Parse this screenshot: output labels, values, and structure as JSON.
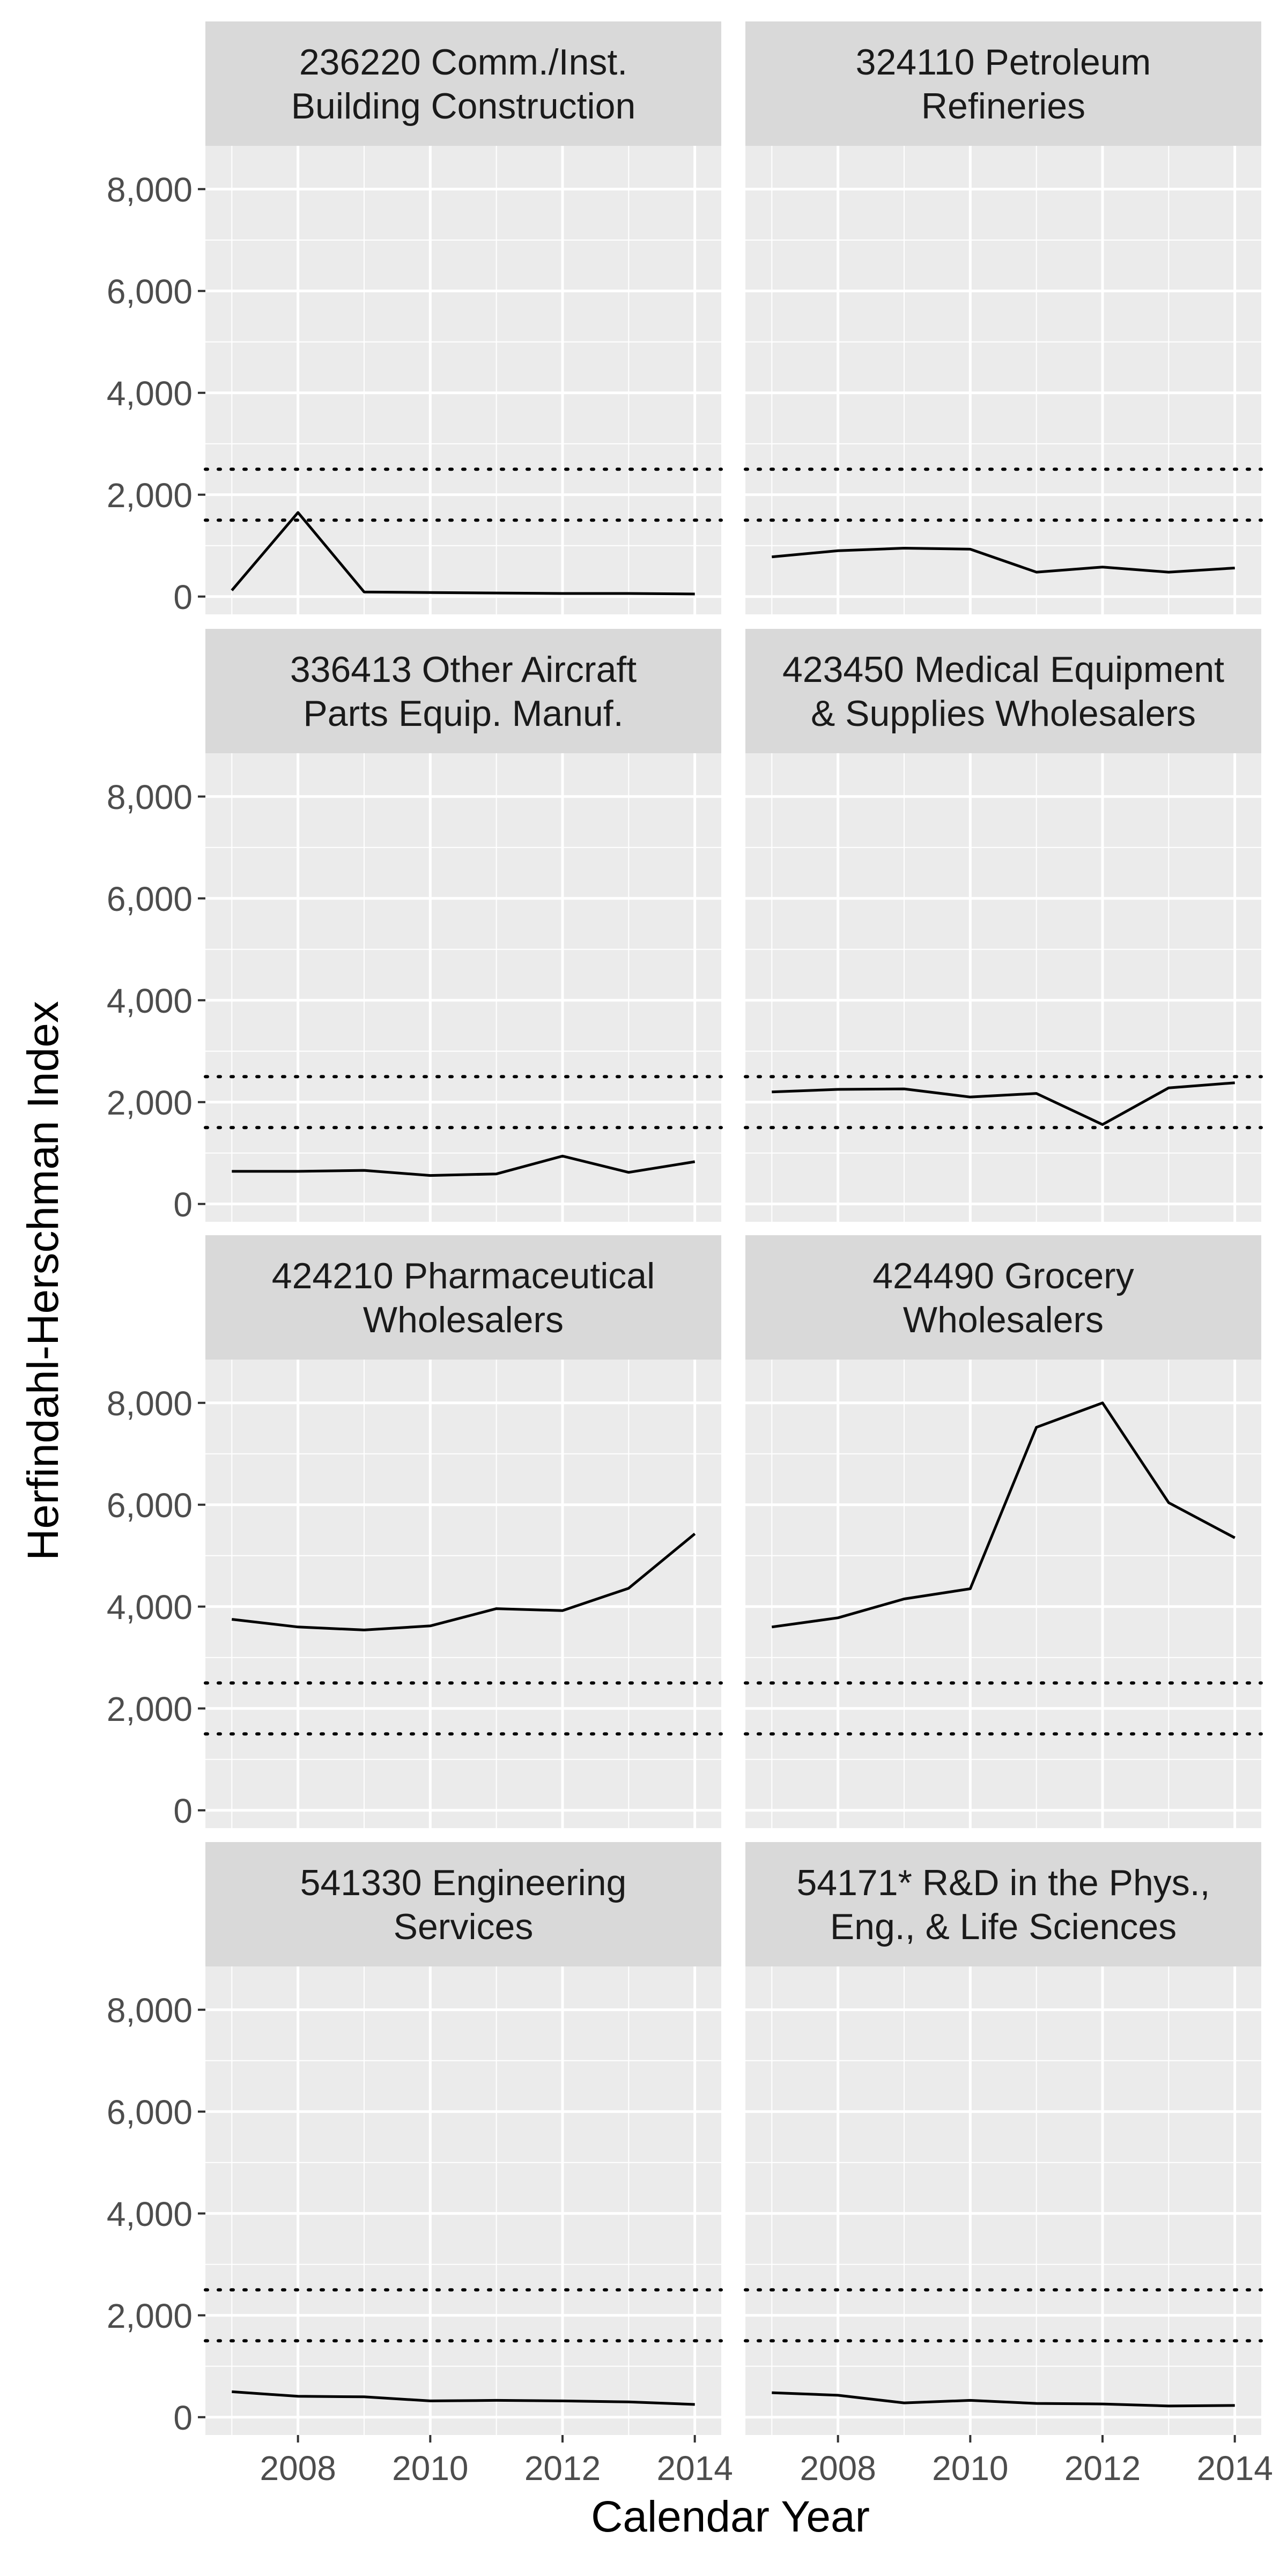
{
  "chart_data": {
    "type": "line",
    "xlabel": "Calendar Year",
    "ylabel": "Herfindahl-Herschman Index",
    "ylim": [
      0,
      8000
    ],
    "xlim": [
      2007,
      2014
    ],
    "x_ticks": [
      "2008",
      "2010",
      "2012",
      "2014"
    ],
    "y_ticks": [
      "0",
      "2,000",
      "4,000",
      "6,000",
      "8,000"
    ],
    "reference_lines": [
      1500,
      2500
    ],
    "grid": true,
    "x": [
      2007,
      2008,
      2009,
      2010,
      2011,
      2012,
      2013,
      2014
    ],
    "facets": [
      {
        "title_lines": [
          "236220 Comm./Inst.",
          "Building Construction"
        ],
        "values": [
          120,
          1650,
          90,
          80,
          70,
          60,
          60,
          50
        ]
      },
      {
        "title_lines": [
          "324110 Petroleum",
          "Refineries"
        ],
        "values": [
          780,
          900,
          950,
          930,
          480,
          580,
          480,
          560
        ]
      },
      {
        "title_lines": [
          "336413 Other Aircraft",
          "Parts Equip. Manuf."
        ],
        "values": [
          640,
          640,
          660,
          560,
          590,
          940,
          620,
          830
        ]
      },
      {
        "title_lines": [
          "423450 Medical Equipment",
          "& Supplies Wholesalers"
        ],
        "values": [
          2200,
          2250,
          2260,
          2100,
          2170,
          1560,
          2280,
          2380
        ]
      },
      {
        "title_lines": [
          "424210 Pharmaceutical",
          "Wholesalers"
        ],
        "values": [
          3750,
          3600,
          3540,
          3620,
          3960,
          3920,
          4360,
          5430
        ]
      },
      {
        "title_lines": [
          "424490 Grocery",
          "Wholesalers"
        ],
        "values": [
          3600,
          3780,
          4150,
          4350,
          7520,
          8000,
          6040,
          5350
        ]
      },
      {
        "title_lines": [
          "541330 Engineering",
          "Services"
        ],
        "values": [
          500,
          410,
          400,
          320,
          330,
          320,
          300,
          250
        ]
      },
      {
        "title_lines": [
          "54171* R&D in the Phys.,",
          "Eng., & Life Sciences"
        ],
        "values": [
          480,
          430,
          280,
          330,
          270,
          260,
          220,
          230
        ]
      }
    ]
  }
}
